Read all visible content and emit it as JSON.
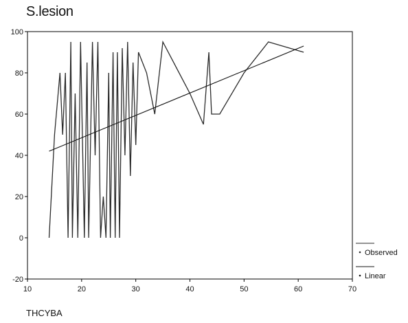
{
  "chart_data": {
    "type": "line",
    "title": "S.lesion",
    "xlabel": "THCYBA",
    "ylabel": "",
    "xlim": [
      10,
      70
    ],
    "ylim": [
      -20,
      100
    ],
    "xticks": [
      10,
      20,
      30,
      40,
      50,
      60,
      70
    ],
    "yticks": [
      -20,
      0,
      20,
      40,
      60,
      80,
      100
    ],
    "grid": false,
    "legend_position": "bottom-right",
    "colors": {
      "observed": "#2a2a2a",
      "linear": "#111111",
      "axis": "#000000"
    },
    "series": [
      {
        "name": "Observed",
        "x": [
          14,
          15,
          16,
          16.5,
          17,
          17.5,
          18,
          18.3,
          18.8,
          19.3,
          19.8,
          20.5,
          21,
          21.3,
          22,
          22.5,
          23,
          23.5,
          24,
          24.5,
          25,
          25.3,
          25.8,
          26.2,
          26.6,
          27,
          27.5,
          28,
          28.5,
          29,
          29.5,
          30,
          30.5,
          32,
          33.5,
          35,
          40,
          42.5,
          43.5,
          44,
          45.5,
          50,
          54.5,
          61
        ],
        "y": [
          0,
          50,
          80,
          50,
          80,
          0,
          95,
          0,
          70,
          0,
          95,
          0,
          85,
          0,
          95,
          40,
          95,
          0,
          20,
          0,
          80,
          0,
          90,
          0,
          90,
          0,
          92,
          40,
          95,
          30,
          85,
          45,
          90,
          80,
          60,
          95,
          70,
          55,
          90,
          60,
          60,
          80,
          95,
          90
        ]
      },
      {
        "name": "Linear",
        "x": [
          14,
          61
        ],
        "y": [
          42,
          93
        ]
      }
    ]
  }
}
